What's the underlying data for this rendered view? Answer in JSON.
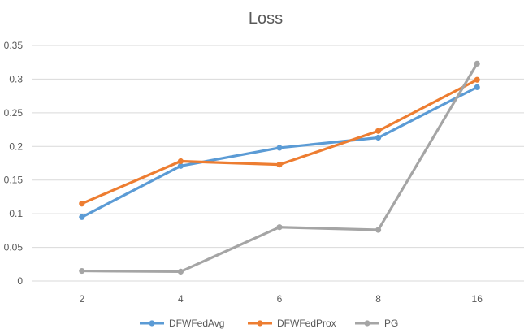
{
  "chart_data": {
    "type": "line",
    "title": "Loss",
    "xlabel": "",
    "ylabel": "",
    "categories": [
      "2",
      "4",
      "6",
      "8",
      "16"
    ],
    "ylim": [
      0,
      0.35
    ],
    "yticks": [
      "0",
      "0.05",
      "0.1",
      "0.15",
      "0.2",
      "0.25",
      "0.3",
      "0.35"
    ],
    "grid": true,
    "legend": "bottom",
    "series": [
      {
        "name": "DFWFedAvg",
        "color": "#5b9bd5",
        "values": [
          0.095,
          0.171,
          0.198,
          0.213,
          0.288
        ]
      },
      {
        "name": "DFWFedProx",
        "color": "#ed7d31",
        "values": [
          0.115,
          0.178,
          0.173,
          0.223,
          0.299
        ]
      },
      {
        "name": "PG",
        "color": "#a5a5a5",
        "values": [
          0.015,
          0.014,
          0.08,
          0.076,
          0.323
        ]
      }
    ]
  }
}
